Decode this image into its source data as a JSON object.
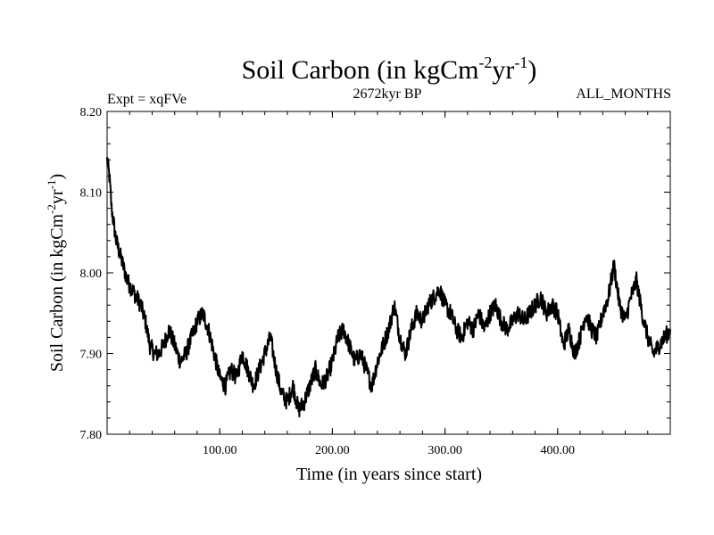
{
  "chart_data": {
    "type": "line",
    "title": "Soil Carbon (in kgCm",
    "title_sup1": "-2",
    "title_mid": "yr",
    "title_sup2": "-1",
    "title_end": ")",
    "subtitle_left": "Expt = xqFVe",
    "subtitle_center": "2672kyr BP",
    "subtitle_right": "ALL_MONTHS",
    "xlabel": "Time (in years since start)",
    "ylabel": "Soil Carbon (in kgCm",
    "ylabel_sup1": "-2",
    "ylabel_mid": "yr",
    "ylabel_sup2": "-1",
    "ylabel_end": ")",
    "xlim": [
      0,
      500
    ],
    "ylim": [
      7.8,
      8.2
    ],
    "xticks": [
      100,
      200,
      300,
      400
    ],
    "xtick_labels": [
      "100.00",
      "200.00",
      "300.00",
      "400.00"
    ],
    "yticks": [
      7.8,
      7.9,
      8.0,
      8.1,
      8.2
    ],
    "ytick_labels": [
      "7.80",
      "7.90",
      "8.00",
      "8.10",
      "8.20"
    ],
    "series": [
      {
        "name": "Soil Carbon",
        "color": "#000000",
        "x": [
          0,
          2,
          4,
          6,
          8,
          10,
          14,
          18,
          22,
          26,
          30,
          34,
          38,
          42,
          46,
          50,
          55,
          60,
          65,
          70,
          75,
          80,
          85,
          90,
          95,
          100,
          105,
          110,
          115,
          120,
          125,
          130,
          135,
          140,
          145,
          150,
          155,
          160,
          165,
          170,
          175,
          180,
          185,
          190,
          195,
          200,
          205,
          210,
          215,
          220,
          225,
          230,
          235,
          240,
          245,
          250,
          255,
          260,
          265,
          270,
          275,
          280,
          285,
          290,
          295,
          300,
          305,
          310,
          315,
          320,
          325,
          330,
          335,
          340,
          345,
          350,
          355,
          360,
          365,
          370,
          375,
          380,
          385,
          390,
          395,
          400,
          405,
          410,
          415,
          420,
          425,
          430,
          435,
          440,
          445,
          450,
          455,
          460,
          465,
          470,
          475,
          480,
          485,
          490,
          495,
          500
        ],
        "values": [
          8.14,
          8.12,
          8.08,
          8.06,
          8.04,
          8.03,
          8.01,
          7.99,
          7.98,
          7.97,
          7.96,
          7.94,
          7.91,
          7.9,
          7.9,
          7.91,
          7.93,
          7.91,
          7.89,
          7.9,
          7.92,
          7.94,
          7.95,
          7.93,
          7.9,
          7.87,
          7.86,
          7.88,
          7.87,
          7.9,
          7.88,
          7.86,
          7.88,
          7.9,
          7.92,
          7.88,
          7.85,
          7.84,
          7.86,
          7.83,
          7.84,
          7.86,
          7.88,
          7.86,
          7.87,
          7.89,
          7.92,
          7.93,
          7.91,
          7.89,
          7.9,
          7.88,
          7.86,
          7.89,
          7.91,
          7.93,
          7.96,
          7.92,
          7.9,
          7.93,
          7.95,
          7.94,
          7.96,
          7.97,
          7.98,
          7.96,
          7.95,
          7.93,
          7.92,
          7.94,
          7.93,
          7.95,
          7.93,
          7.95,
          7.96,
          7.94,
          7.93,
          7.94,
          7.95,
          7.94,
          7.95,
          7.96,
          7.97,
          7.95,
          7.96,
          7.95,
          7.91,
          7.93,
          7.9,
          7.92,
          7.95,
          7.93,
          7.92,
          7.95,
          7.97,
          8.01,
          7.96,
          7.94,
          7.97,
          7.99,
          7.95,
          7.92,
          7.9,
          7.91,
          7.92,
          7.93
        ]
      }
    ]
  }
}
